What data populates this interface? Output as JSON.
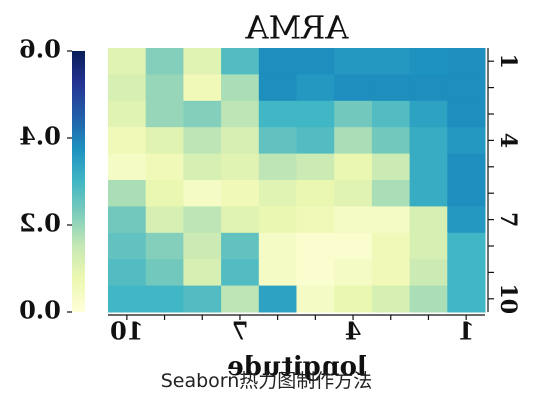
{
  "caption": "Seaborn热力图制作方法",
  "chart_data": {
    "type": "heatmap",
    "title": "ARMA",
    "xlabel": "longitude",
    "ylabel": "",
    "rows": 10,
    "cols": 10,
    "row_labels_shown": [
      {
        "row": 1,
        "label": "1"
      },
      {
        "row": 4,
        "label": "4"
      },
      {
        "row": 7,
        "label": "7"
      },
      {
        "row": 10,
        "label": "10"
      }
    ],
    "col_labels_shown": [
      {
        "col": 1,
        "label": "10"
      },
      {
        "col": 4,
        "label": "7"
      },
      {
        "col": 7,
        "label": "4"
      },
      {
        "col": 10,
        "label": "1"
      }
    ],
    "values": [
      [
        0.1,
        0.22,
        0.1,
        0.28,
        0.38,
        0.38,
        0.36,
        0.36,
        0.37,
        0.38
      ],
      [
        0.12,
        0.2,
        0.06,
        0.18,
        0.38,
        0.36,
        0.38,
        0.38,
        0.38,
        0.38
      ],
      [
        0.1,
        0.2,
        0.22,
        0.16,
        0.3,
        0.3,
        0.24,
        0.28,
        0.34,
        0.38
      ],
      [
        0.06,
        0.1,
        0.16,
        0.12,
        0.26,
        0.28,
        0.18,
        0.24,
        0.32,
        0.36
      ],
      [
        0.04,
        0.06,
        0.12,
        0.1,
        0.16,
        0.14,
        0.08,
        0.14,
        0.32,
        0.38
      ],
      [
        0.18,
        0.08,
        0.04,
        0.06,
        0.1,
        0.08,
        0.1,
        0.18,
        0.32,
        0.38
      ],
      [
        0.24,
        0.12,
        0.16,
        0.1,
        0.08,
        0.06,
        0.04,
        0.04,
        0.12,
        0.36
      ],
      [
        0.26,
        0.22,
        0.14,
        0.26,
        0.04,
        0.02,
        0.02,
        0.06,
        0.12,
        0.3
      ],
      [
        0.28,
        0.24,
        0.12,
        0.28,
        0.04,
        0.02,
        0.04,
        0.06,
        0.14,
        0.3
      ],
      [
        0.3,
        0.3,
        0.28,
        0.16,
        0.34,
        0.04,
        0.08,
        0.12,
        0.18,
        0.3
      ]
    ],
    "colorbar": {
      "ticks": [
        {
          "value": 0.0,
          "label": "0.0"
        },
        {
          "value": 0.2,
          "label": "0.2"
        },
        {
          "value": 0.4,
          "label": "0.4"
        },
        {
          "value": 0.6,
          "label": "0.6"
        }
      ],
      "min": 0.0,
      "max": 0.6,
      "colormap": "YlGnBu",
      "stops": [
        "#ffffd9",
        "#edf8b1",
        "#c7e9b4",
        "#7fcdbb",
        "#41b6c4",
        "#1d91c0",
        "#225ea8",
        "#253494",
        "#081d58"
      ]
    },
    "mirrored": true,
    "grid": false
  }
}
